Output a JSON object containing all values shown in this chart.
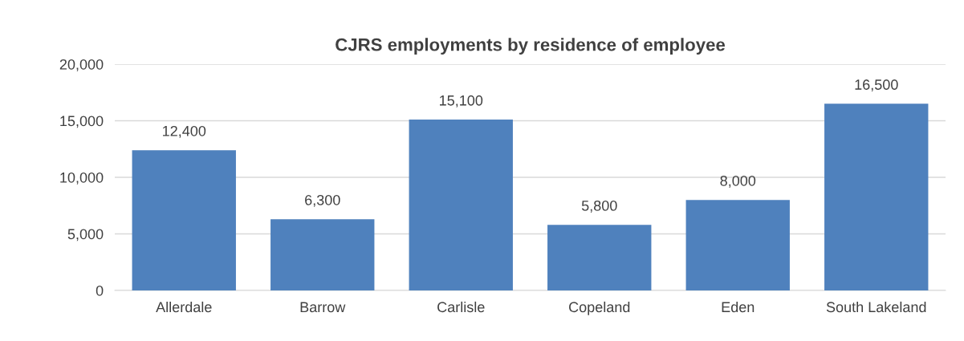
{
  "chart_data": {
    "type": "bar",
    "title": "CJRS employments by residence of employee",
    "categories": [
      "Allerdale",
      "Barrow",
      "Carlisle",
      "Copeland",
      "Eden",
      "South Lakeland"
    ],
    "values": [
      12400,
      6300,
      15100,
      5800,
      8000,
      16500
    ],
    "value_labels": [
      "12,400",
      "6,300",
      "15,100",
      "5,800",
      "8,000",
      "16,500"
    ],
    "color": "#4f81bd",
    "ylim": [
      0,
      20000
    ],
    "yticks": [
      {
        "value": 0,
        "label": "0"
      },
      {
        "value": 5000,
        "label": "5,000"
      },
      {
        "value": 10000,
        "label": "10,000"
      },
      {
        "value": 15000,
        "label": "15,000"
      },
      {
        "value": 20000,
        "label": "20,000"
      }
    ],
    "grid": "y"
  }
}
